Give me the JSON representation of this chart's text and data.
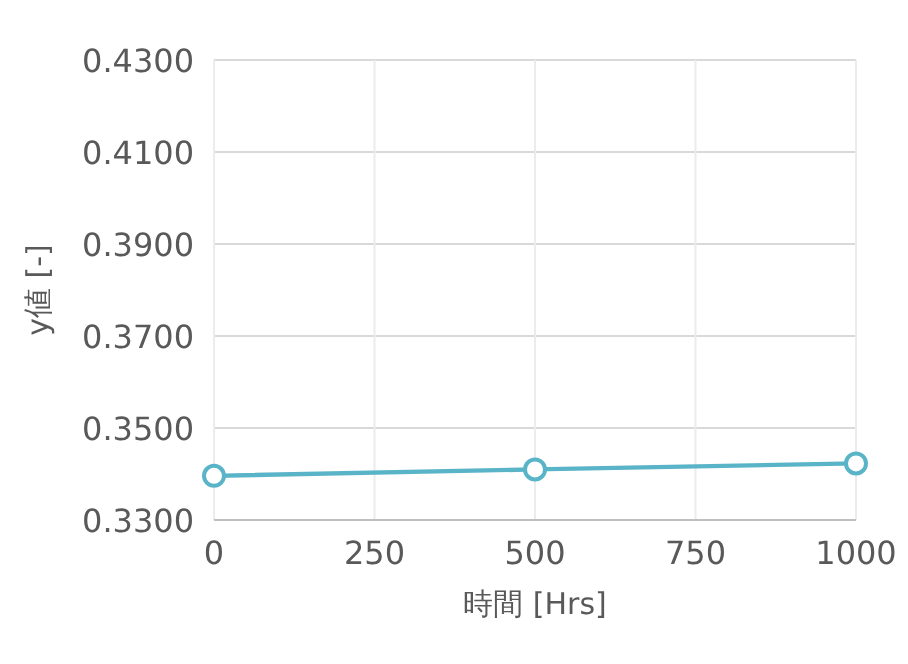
{
  "chart_data": {
    "type": "line",
    "xlabel": "時間 [Hrs]",
    "ylabel": "y値 [-]",
    "x": [
      0,
      500,
      1000
    ],
    "series": [
      {
        "color": "#5ab4c8",
        "values": [
          0.3396,
          0.341,
          0.3423
        ]
      }
    ],
    "xlim": [
      0,
      1000
    ],
    "xticks": [
      0,
      250,
      500,
      750,
      1000
    ],
    "ylim": [
      0.33,
      0.43
    ],
    "yticks": [
      {
        "value": 0.33,
        "label": "0.3300"
      },
      {
        "value": 0.35,
        "label": "0.3500"
      },
      {
        "value": 0.37,
        "label": "0.3700"
      },
      {
        "value": 0.39,
        "label": "0.3900"
      },
      {
        "value": 0.41,
        "label": "0.4100"
      },
      {
        "value": 0.43,
        "label": "0.4300"
      }
    ],
    "grid": true,
    "marker": "circle",
    "line_style": "solid"
  }
}
